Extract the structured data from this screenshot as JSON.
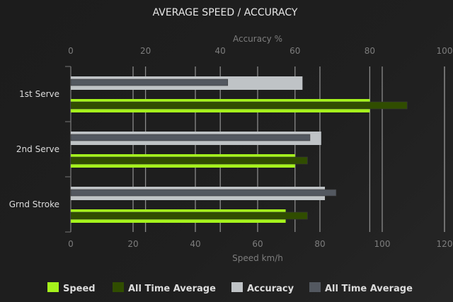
{
  "chart_data": {
    "type": "bar",
    "orientation": "horizontal",
    "title": "AVERAGE SPEED / ACCURACY",
    "categories": [
      "1st Serve",
      "2nd Serve",
      "Grnd Stroke"
    ],
    "top_axis": {
      "label": "Accuracy %",
      "range": [
        0,
        100
      ],
      "ticks": [
        "0",
        "20",
        "40",
        "60",
        "80",
        "100"
      ]
    },
    "bottom_axis": {
      "label": "Speed km/h",
      "range": [
        0,
        120
      ],
      "ticks": [
        "0",
        "20",
        "40",
        "60",
        "80",
        "100",
        "120"
      ]
    },
    "grid": true,
    "legend_position": "bottom",
    "series": [
      {
        "name": "Speed",
        "axis": "bottom",
        "color": "#a5f31c",
        "values": [
          96,
          72,
          69
        ]
      },
      {
        "name": "All Time Average",
        "axis": "bottom",
        "color": "#304d00",
        "values": [
          108,
          76,
          76
        ]
      },
      {
        "name": "Accuracy",
        "axis": "top",
        "color": "#bfc3c6",
        "values": [
          62,
          67,
          68
        ]
      },
      {
        "name": "All Time Average",
        "axis": "top",
        "color": "#535860",
        "values": [
          42,
          64,
          71
        ]
      }
    ]
  }
}
